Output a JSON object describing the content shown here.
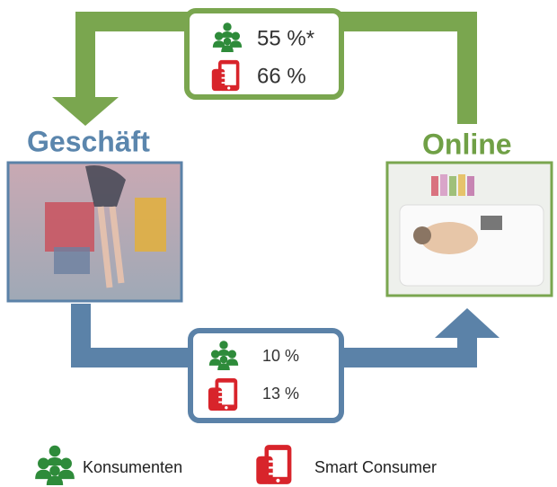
{
  "labels": {
    "store": "Geschäft",
    "online": "Online"
  },
  "online_to_store": {
    "consumers": "55 %*",
    "smart_consumers": "66 %"
  },
  "store_to_online": {
    "consumers": "10 %",
    "smart_consumers": "13 %"
  },
  "legend": {
    "consumers": "Konsumenten",
    "smart_consumers": "Smart Consumer"
  }
}
